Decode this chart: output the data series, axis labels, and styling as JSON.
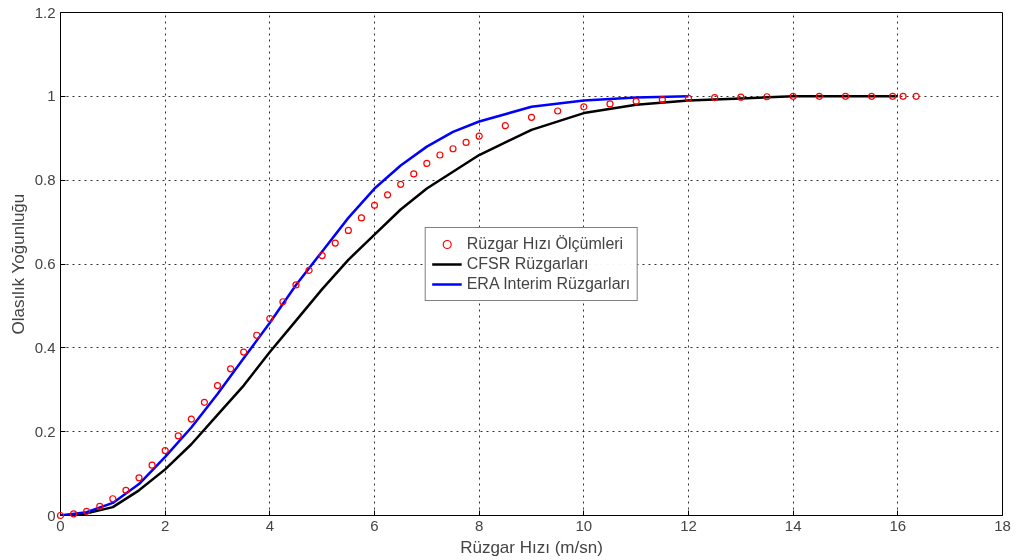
{
  "chart_data": {
    "type": "line",
    "xlabel": "Rüzgar Hızı (m/sn)",
    "ylabel": "Olasılık Yoğunluğu",
    "xlim": [
      0,
      18
    ],
    "ylim": [
      0,
      1.2
    ],
    "xticks": [
      0,
      2,
      4,
      6,
      8,
      10,
      12,
      14,
      16,
      18
    ],
    "yticks": [
      0,
      0.2,
      0.4,
      0.6,
      0.8,
      1,
      1.2
    ],
    "grid": true,
    "legend": "center",
    "series": [
      {
        "name": "Rüzgar Hızı Ölçümleri",
        "type": "scatter",
        "marker": "circle",
        "color": "#ff0000",
        "x": [
          0,
          0.25,
          0.5,
          0.75,
          1,
          1.25,
          1.5,
          1.75,
          2,
          2.25,
          2.5,
          2.75,
          3,
          3.25,
          3.5,
          3.75,
          4,
          4.25,
          4.5,
          4.75,
          5,
          5.25,
          5.5,
          5.75,
          6,
          6.25,
          6.5,
          6.75,
          7,
          7.25,
          7.5,
          7.75,
          8,
          8.5,
          9,
          9.5,
          10,
          10.5,
          11,
          11.5,
          12,
          12.5,
          13,
          13.5,
          14,
          14.5,
          15,
          15.5,
          15.9,
          16.1,
          16.35
        ],
        "values": [
          0,
          0.004,
          0.01,
          0.022,
          0.04,
          0.06,
          0.09,
          0.12,
          0.155,
          0.19,
          0.23,
          0.27,
          0.31,
          0.35,
          0.39,
          0.43,
          0.47,
          0.51,
          0.55,
          0.585,
          0.62,
          0.65,
          0.68,
          0.71,
          0.74,
          0.765,
          0.79,
          0.815,
          0.84,
          0.86,
          0.875,
          0.89,
          0.905,
          0.93,
          0.95,
          0.965,
          0.975,
          0.982,
          0.988,
          0.992,
          0.995,
          0.997,
          0.998,
          0.999,
          1,
          1,
          1,
          1,
          1,
          1,
          1
        ]
      },
      {
        "name": "CFSR Rüzgarları",
        "color": "#000000",
        "x": [
          0,
          0.5,
          1,
          1.5,
          2,
          2.5,
          3,
          3.5,
          4,
          4.5,
          5,
          5.5,
          6,
          6.5,
          7,
          7.5,
          8,
          9,
          10,
          11,
          12,
          13,
          14,
          15,
          16
        ],
        "values": [
          0,
          0.005,
          0.02,
          0.06,
          0.11,
          0.17,
          0.24,
          0.31,
          0.39,
          0.465,
          0.54,
          0.61,
          0.67,
          0.73,
          0.78,
          0.82,
          0.86,
          0.92,
          0.96,
          0.98,
          0.99,
          0.995,
          1,
          1,
          1
        ]
      },
      {
        "name": "ERA Interim Rüzgarları",
        "color": "#0000ff",
        "x": [
          0,
          0.5,
          1,
          1.5,
          2,
          2.5,
          3,
          3.5,
          4,
          4.5,
          5,
          5.5,
          6,
          6.5,
          7,
          7.5,
          8,
          9,
          10,
          11,
          12
        ],
        "values": [
          0,
          0.008,
          0.03,
          0.075,
          0.14,
          0.21,
          0.29,
          0.375,
          0.46,
          0.55,
          0.63,
          0.71,
          0.78,
          0.835,
          0.88,
          0.915,
          0.94,
          0.975,
          0.99,
          0.997,
          1
        ]
      }
    ]
  }
}
